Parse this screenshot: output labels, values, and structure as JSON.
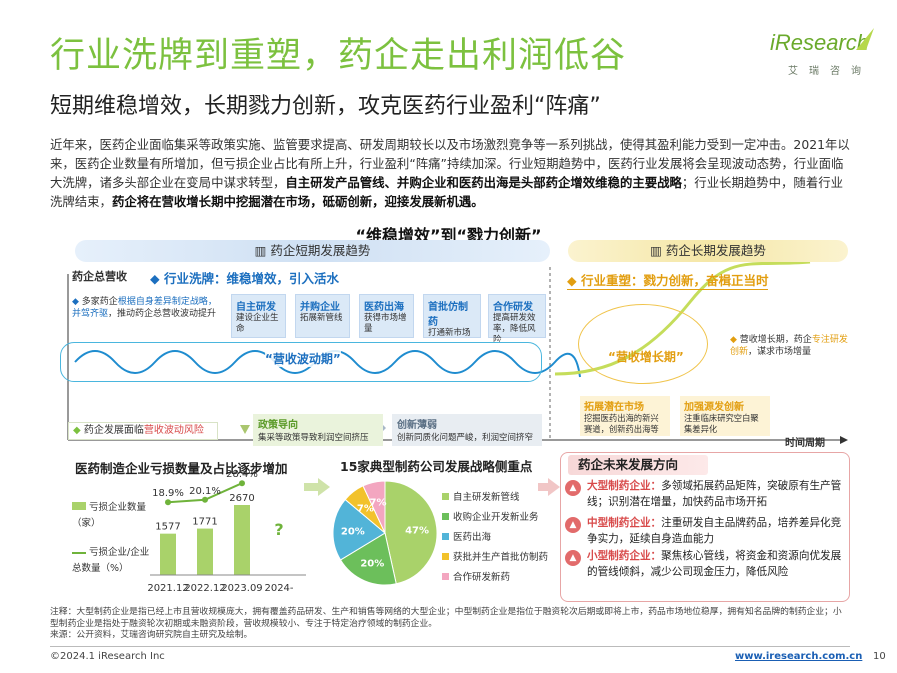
{
  "header": {
    "title": "行业洗牌到重塑，药企走出利润低谷",
    "subtitle": "短期维稳增效，长期戮力创新，攻克医药行业盈利“阵痛”",
    "logo_main": "iResearch",
    "logo_sub": "艾瑞咨询"
  },
  "intro": {
    "p1": "近年来，医药企业面临集采等政策实施、监管要求提高、研发周期较长以及市场激烈竞争等一系列挑战，使得其盈利能力受到一定冲击。2021年以来，医药企业数量有所增加，但亏损企业占比有所上升，行业盈利“阵痛”持续加深。行业短期趋势中，医药行业发展将会呈现波动态势，行业面临大洗牌，诸多头部企业在变局中谋求转型，",
    "b1": "自主研发产品管线、并购企业和医药出海是头部药企增效维稳的主要战略",
    "p2": "；行业长期趋势中，随着行业洗牌结束，",
    "b2": "药企将在营收增长期中挖掘潜在市场，砥砺创新，迎接发展新机遇。"
  },
  "diagram": {
    "title": "“维稳增效”到“戮力创新”",
    "short_band": "药企短期发展趋势",
    "long_band": "药企长期发展趋势",
    "y_label": "药企总营收",
    "x_label": "时间周期",
    "short_head": "◆ 行业洗牌：维稳增效，引入活水",
    "long_head": "◆ 行业重塑：戮力创新，奋楫正当时",
    "short_note_a": "多家药企",
    "short_note_b": "根据自身差异制定战略，并驾齐驱",
    "short_note_c": "，推动药企总营收波动提升",
    "strategies": [
      {
        "h": "自主研发",
        "t": "建设企业生命"
      },
      {
        "h": "并购企业",
        "t": "拓展新管线"
      },
      {
        "h": "医药出海",
        "t": "获得市场增量"
      },
      {
        "h": "首批仿制药",
        "t": "打通新市场"
      },
      {
        "h": "合作研发",
        "t": "提高研发效率，降低风险"
      }
    ],
    "wave_label": "“营收波动期”",
    "growth_label": "“营收增长期”",
    "long_note_a": "营收增长期，药企",
    "long_note_b": "专注研发创新",
    "long_note_c": "，谋求市场增量",
    "bottom_note_a": "药企发展面临",
    "bottom_note_b": "营收波动风险",
    "policy_h": "政策导向",
    "policy_t": "集采等政策导致利润空间挤压",
    "innov_h": "创新薄弱",
    "innov_t": "创新同质化问题严峻，利润空间挤窄",
    "ext_market_h": "拓展潜在市场",
    "ext_market_t": "挖掘医药出海的新兴赛道，创新药出海等",
    "strengthen_h": "加强源发创新",
    "strengthen_t": "注重临床研究空白聚集差异化"
  },
  "left_chart": {
    "title": "医药制造企业亏损数量及占比逐步增加",
    "legend_bar": "亏损企业数量（家）",
    "legend_line": "亏损企业/企业总数量（%）",
    "unknown_label": "?"
  },
  "chart_data": [
    {
      "type": "bar",
      "categories": [
        "2021.12",
        "2022.12",
        "2023.09",
        "2024-"
      ],
      "series": [
        {
          "name": "亏损企业数量（家）",
          "values": [
            1577,
            1771,
            2670,
            null
          ]
        },
        {
          "name": "亏损企业/企业总数量（%）",
          "values": [
            18.9,
            20.1,
            28.4,
            null
          ]
        }
      ],
      "labels_bar": [
        "1577",
        "1771",
        "2670",
        ""
      ],
      "labels_line": [
        "18.9%",
        "20.1%",
        "28.4%",
        ""
      ]
    },
    {
      "type": "pie",
      "title": "15家典型制药公司发展战略侧重点",
      "categories": [
        "自主研发新管线",
        "收购企业开发新业务",
        "医药出海",
        "获批并生产首批仿制药",
        "合作研发新药"
      ],
      "values": [
        47,
        20,
        20,
        7,
        7
      ],
      "labels": [
        "47%",
        "20%",
        "20%",
        "7%",
        "7%"
      ],
      "colors": [
        "#a9d26a",
        "#6cbf5b",
        "#52b4d8",
        "#f2c22b",
        "#f3a6c0"
      ]
    }
  ],
  "future": {
    "title": "药企未来发展方向",
    "rows": [
      {
        "k": "大型制药企业：",
        "t": "多领域拓展药品矩阵，突破原有生产管线；识别潜在增量，加快药品市场开拓"
      },
      {
        "k": "中型制药企业：",
        "t": "注重研发自主品牌药品，培养差异化竞争实力，延续自身造血能力"
      },
      {
        "k": "小型制药企业：",
        "t": "聚焦核心管线，将资金和资源向优发展的管线倾斜，减少公司现金压力，降低风险"
      }
    ]
  },
  "footnote": {
    "note": "注释：大型制药企业是指已经上市且营收规模庞大，拥有覆盖药品研发、生产和销售等网络的大型企业；中型制药企业是指位于融资轮次后期或即将上市，药品市场地位稳厚，拥有知名品牌的制药企业；小型制药企业是指处于融资轮次初期或未融资阶段，营收规模较小、专注于特定治疗领域的制药企业。",
    "source": "来源：公开资料，艾瑞咨询研究院自主研究及绘制。"
  },
  "footer": {
    "copyright": "©2024.1 iResearch Inc",
    "url": "www.iresearch.com.cn",
    "page": "10"
  }
}
